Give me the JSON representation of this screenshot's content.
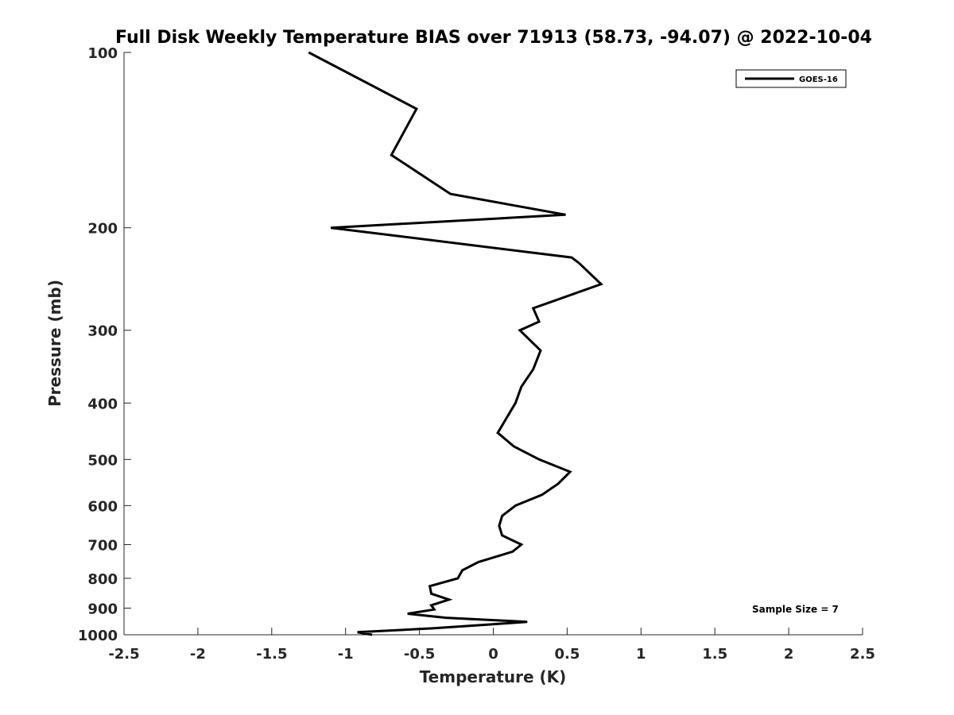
{
  "chart_data": {
    "type": "line",
    "title": "Full Disk Weekly Temperature BIAS over 71913 (58.73, -94.07) @ 2022-10-04",
    "xlabel": "Temperature (K)",
    "ylabel": "Pressure (mb)",
    "xlim": [
      -2.5,
      2.5
    ],
    "ylim": [
      1000,
      100
    ],
    "yscale": "log",
    "y_reversed": true,
    "x_ticks": [
      -2.5,
      -2,
      -1.5,
      -1,
      -0.5,
      0,
      0.5,
      1,
      1.5,
      2,
      2.5
    ],
    "x_tick_labels": [
      "-2.5",
      "-2",
      "-1.5",
      "-1",
      "-0.5",
      "0",
      "0.5",
      "1",
      "1.5",
      "2",
      "2.5"
    ],
    "y_ticks": [
      100,
      200,
      300,
      400,
      500,
      600,
      700,
      800,
      900,
      1000
    ],
    "y_tick_labels": [
      "100",
      "200",
      "300",
      "400",
      "500",
      "600",
      "700",
      "800",
      "900",
      "1000"
    ],
    "grid": false,
    "legend_position": "top-right",
    "annotation": "Sample Size = 7",
    "series": [
      {
        "name": "GOES-16",
        "color": "#000000",
        "points": [
          {
            "x": -1.25,
            "p": 100
          },
          {
            "x": -0.52,
            "p": 125
          },
          {
            "x": -0.69,
            "p": 150
          },
          {
            "x": -0.29,
            "p": 175
          },
          {
            "x": 0.49,
            "p": 190
          },
          {
            "x": -1.1,
            "p": 200
          },
          {
            "x": 0.53,
            "p": 225
          },
          {
            "x": 0.58,
            "p": 230
          },
          {
            "x": 0.73,
            "p": 250
          },
          {
            "x": 0.27,
            "p": 275
          },
          {
            "x": 0.31,
            "p": 290
          },
          {
            "x": 0.18,
            "p": 300
          },
          {
            "x": 0.32,
            "p": 325
          },
          {
            "x": 0.27,
            "p": 350
          },
          {
            "x": 0.19,
            "p": 375
          },
          {
            "x": 0.15,
            "p": 400
          },
          {
            "x": 0.03,
            "p": 450
          },
          {
            "x": 0.14,
            "p": 475
          },
          {
            "x": 0.31,
            "p": 500
          },
          {
            "x": 0.52,
            "p": 525
          },
          {
            "x": 0.44,
            "p": 550
          },
          {
            "x": 0.33,
            "p": 575
          },
          {
            "x": 0.15,
            "p": 600
          },
          {
            "x": 0.06,
            "p": 625
          },
          {
            "x": 0.04,
            "p": 650
          },
          {
            "x": 0.06,
            "p": 675
          },
          {
            "x": 0.19,
            "p": 700
          },
          {
            "x": 0.13,
            "p": 720
          },
          {
            "x": -0.1,
            "p": 750
          },
          {
            "x": -0.21,
            "p": 775
          },
          {
            "x": -0.24,
            "p": 800
          },
          {
            "x": -0.43,
            "p": 825
          },
          {
            "x": -0.42,
            "p": 850
          },
          {
            "x": -0.3,
            "p": 870
          },
          {
            "x": -0.42,
            "p": 890
          },
          {
            "x": -0.4,
            "p": 905
          },
          {
            "x": -0.58,
            "p": 920
          },
          {
            "x": -0.32,
            "p": 935
          },
          {
            "x": 0.23,
            "p": 950
          },
          {
            "x": -0.02,
            "p": 960
          },
          {
            "x": -0.41,
            "p": 975
          },
          {
            "x": -0.92,
            "p": 990
          },
          {
            "x": -0.82,
            "p": 1000
          }
        ]
      }
    ]
  }
}
